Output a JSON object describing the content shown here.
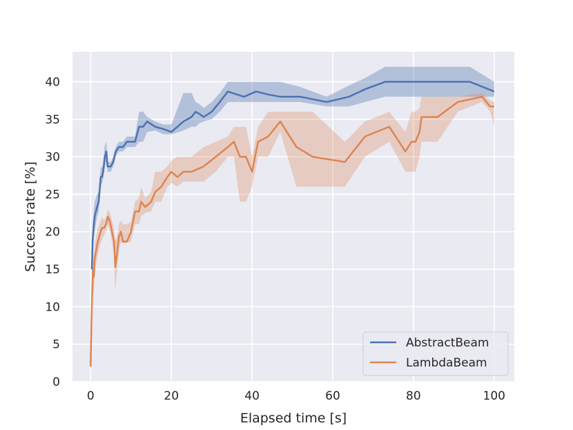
{
  "chart_data": {
    "type": "line",
    "title": "",
    "xlabel": "Elapsed time [s]",
    "ylabel": "Success rate [%]",
    "xlim": [
      -4.5,
      105
    ],
    "ylim": [
      0,
      44
    ],
    "xticks": [
      0,
      20,
      40,
      60,
      80,
      100
    ],
    "yticks": [
      0,
      5,
      10,
      15,
      20,
      25,
      30,
      35,
      40
    ],
    "grid": true,
    "legend_position": "lower-right",
    "series": [
      {
        "name": "AbstractBeam",
        "color": "#4c72b0",
        "band_opacity": 0.35,
        "x": [
          0.3,
          0.5,
          0.8,
          1.0,
          1.3,
          1.6,
          2.0,
          2.5,
          2.8,
          3.1,
          3.5,
          3.9,
          4.2,
          4.6,
          5.0,
          5.6,
          6.2,
          7.0,
          8.0,
          9.0,
          10.0,
          11.0,
          12.0,
          13.0,
          14.0,
          16.0,
          18.0,
          20.0,
          23.0,
          25.0,
          26.0,
          27.0,
          28.0,
          30.0,
          32.0,
          34.0,
          38.0,
          41.0,
          44.0,
          47.0,
          52.0,
          58.5,
          64.0,
          68.0,
          73.0,
          80.0,
          87.0,
          94.0,
          100.0
        ],
        "y": [
          15,
          19,
          21,
          22,
          22.7,
          23.3,
          24,
          27.3,
          27.3,
          28,
          30,
          30.7,
          28.7,
          28.7,
          28.7,
          29.3,
          30.7,
          31.3,
          31.3,
          32,
          32,
          32,
          34,
          34,
          34.7,
          34,
          33.7,
          33.3,
          34.7,
          35.3,
          36,
          35.7,
          35.3,
          36,
          37.3,
          38.7,
          38,
          38.7,
          38.3,
          38,
          38,
          37.3,
          38,
          39,
          40,
          40,
          40,
          40,
          38.7
        ],
        "lower": [
          13,
          17,
          19,
          20,
          21,
          22,
          22.7,
          26,
          26.5,
          27,
          28.5,
          29.5,
          28,
          28,
          28,
          28.7,
          30,
          30.7,
          30.7,
          31.3,
          31.3,
          31.3,
          32,
          32,
          33.3,
          33.5,
          33,
          33,
          33.5,
          34,
          34,
          34.5,
          34.7,
          35,
          36,
          37.3,
          37.3,
          37.3,
          37.3,
          37.3,
          37.3,
          36.7,
          36.7,
          37.3,
          38,
          38,
          38,
          38,
          38
        ],
        "upper": [
          17,
          21,
          23,
          24,
          24.5,
          25,
          25.3,
          28.7,
          28.5,
          29,
          31.5,
          32,
          29.3,
          29.3,
          29.3,
          30,
          31.3,
          32,
          32,
          32.7,
          32.7,
          32.7,
          36,
          36,
          35.3,
          34.7,
          34.3,
          34.3,
          38.5,
          38.5,
          37.3,
          37,
          36.5,
          37.3,
          38.5,
          40,
          40,
          40,
          40,
          40,
          39.3,
          38,
          39.5,
          40.5,
          42,
          42,
          42,
          42,
          40
        ]
      },
      {
        "name": "LambdaBeam",
        "color": "#dd8452",
        "band_opacity": 0.3,
        "x": [
          0.0,
          0.2,
          0.4,
          0.6,
          0.8,
          1.0,
          1.3,
          1.7,
          2.2,
          2.8,
          3.3,
          3.8,
          4.3,
          4.8,
          5.3,
          5.8,
          6.1,
          6.6,
          7.0,
          7.5,
          8.0,
          9.0,
          10.0,
          11.0,
          12.0,
          12.5,
          13.5,
          15.0,
          16.0,
          17.5,
          19.0,
          20.0,
          21.5,
          23.0,
          25.0,
          28.0,
          31.0,
          34.0,
          35.5,
          37.0,
          38.5,
          40.0,
          41.5,
          44.0,
          47.0,
          51.0,
          55.0,
          63.0,
          68.0,
          74.0,
          78.0,
          79.5,
          80.5,
          81.5,
          82.0,
          86.0,
          91.0,
          97.0,
          99.0,
          100.0
        ],
        "y": [
          2,
          8,
          12,
          15,
          14,
          16.5,
          17.3,
          18.5,
          19.5,
          20.5,
          20.5,
          21,
          22,
          21.3,
          20,
          18.7,
          15.3,
          17.3,
          19.3,
          20,
          18.7,
          18.7,
          20,
          22.7,
          22.7,
          24,
          23.3,
          24,
          25.3,
          26,
          27.3,
          28,
          27.3,
          28,
          28,
          28.7,
          30,
          31.3,
          32,
          30,
          30,
          28,
          32,
          32.7,
          34.7,
          31.3,
          30,
          29.3,
          32.7,
          34,
          30.7,
          32,
          32,
          33.3,
          35.3,
          35.3,
          37.3,
          38,
          36.7,
          36.7
        ],
        "lower": [
          1.5,
          6,
          10,
          12,
          12,
          14.5,
          15.5,
          16.7,
          18,
          19,
          19.5,
          20,
          21,
          20,
          18.5,
          17,
          12,
          15,
          17.5,
          18.5,
          18.5,
          18.5,
          18.7,
          21,
          21,
          22,
          22.5,
          22.7,
          24,
          24,
          26,
          26.5,
          26,
          26.7,
          26.7,
          26.7,
          28,
          30,
          30,
          24,
          24,
          26,
          30,
          30,
          33.3,
          26,
          26,
          26,
          30,
          32,
          28,
          28,
          28,
          30,
          32,
          32,
          36,
          37.3,
          36,
          34
        ],
        "upper": [
          3,
          10,
          14,
          18,
          16,
          18.5,
          19,
          20.3,
          21,
          22,
          21.5,
          22,
          23,
          22.5,
          21.5,
          20.5,
          18.7,
          19.5,
          21,
          21.5,
          21,
          21,
          21.3,
          24,
          24.5,
          26,
          24.5,
          25.3,
          28,
          28,
          28.7,
          29.5,
          30,
          30,
          30,
          31.3,
          32,
          32.7,
          34,
          34,
          34,
          30,
          34,
          36,
          36,
          36,
          36,
          32,
          34.7,
          36,
          33.3,
          36,
          36,
          36.5,
          38,
          38,
          38,
          38.5,
          37.5,
          37.3
        ]
      }
    ]
  }
}
